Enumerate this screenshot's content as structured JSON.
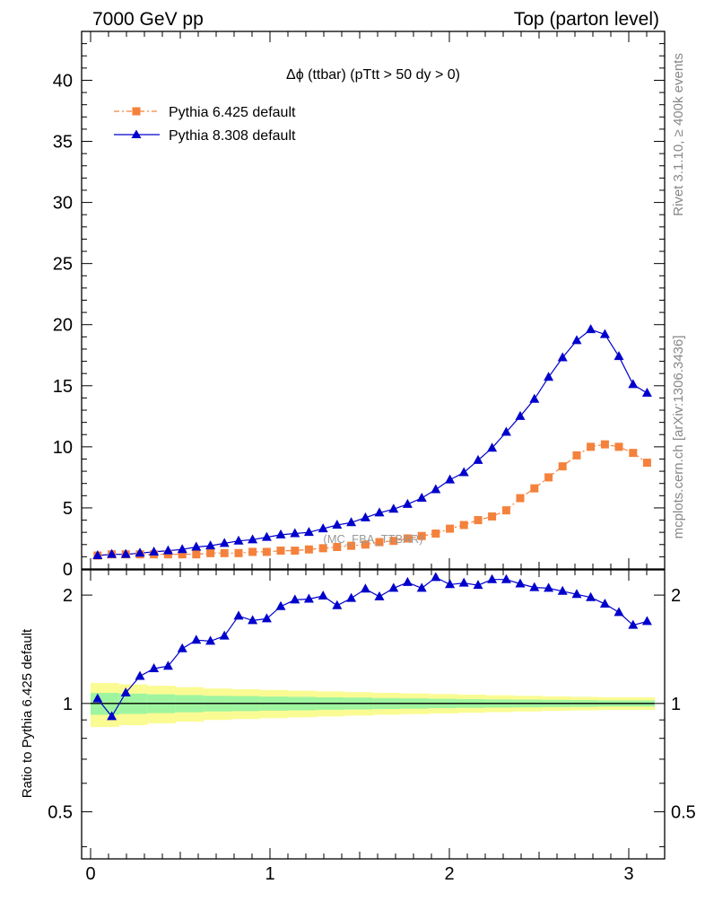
{
  "header": {
    "left": "7000 GeV pp",
    "right": "Top (parton level)"
  },
  "side_labels": {
    "rivet": "Rivet 3.1.10, ≥ 400k events",
    "mcplots": "mcplots.cern.ch [arXiv:1306.3436]"
  },
  "plot_title": "Δϕ (ttbar) (pTtt > 50 dy > 0)",
  "watermark": "(MC_FBA_TTBAR)",
  "colors": {
    "pythia6": "#f4823c",
    "pythia8": "#0000cc",
    "band_inner": "#9ff59f",
    "band_outer": "#fbfb94"
  },
  "chart_data": [
    {
      "type": "line",
      "panel": "main",
      "xlim": [
        -0.05,
        3.2
      ],
      "ylim": [
        0,
        44
      ],
      "yticks": [
        0,
        5,
        10,
        15,
        20,
        25,
        30,
        35,
        40
      ],
      "grid": false,
      "legend_position": "top-left",
      "x": [
        0.039,
        0.118,
        0.196,
        0.275,
        0.353,
        0.432,
        0.511,
        0.589,
        0.668,
        0.746,
        0.825,
        0.903,
        0.982,
        1.06,
        1.139,
        1.217,
        1.296,
        1.374,
        1.453,
        1.532,
        1.61,
        1.689,
        1.767,
        1.846,
        1.924,
        2.003,
        2.081,
        2.16,
        2.238,
        2.317,
        2.395,
        2.474,
        2.553,
        2.631,
        2.71,
        2.788,
        2.867,
        2.945,
        3.024,
        3.102
      ],
      "series": [
        {
          "name": "Pythia 6.425 default",
          "values": [
            1.1,
            1.2,
            1.2,
            1.2,
            1.2,
            1.2,
            1.2,
            1.2,
            1.3,
            1.3,
            1.3,
            1.4,
            1.4,
            1.5,
            1.5,
            1.6,
            1.7,
            1.8,
            1.9,
            2.0,
            2.2,
            2.3,
            2.5,
            2.7,
            2.9,
            3.3,
            3.6,
            4.0,
            4.3,
            4.8,
            5.8,
            6.6,
            7.5,
            8.4,
            9.3,
            10.0,
            10.2,
            10.0,
            9.5,
            8.7
          ]
        },
        {
          "name": "Pythia 8.308 default",
          "values": [
            1.1,
            1.2,
            1.2,
            1.3,
            1.4,
            1.5,
            1.6,
            1.8,
            1.9,
            2.1,
            2.3,
            2.4,
            2.6,
            2.8,
            2.9,
            3.0,
            3.3,
            3.6,
            3.8,
            4.2,
            4.6,
            4.9,
            5.3,
            5.8,
            6.5,
            7.3,
            7.9,
            8.9,
            9.9,
            11.2,
            12.5,
            13.9,
            15.7,
            17.3,
            18.7,
            19.6,
            19.2,
            17.4,
            15.1,
            14.4
          ]
        }
      ]
    },
    {
      "type": "line",
      "panel": "ratio",
      "ylabel": "Ratio to Pythia 6.425 default",
      "xlim": [
        -0.05,
        3.2
      ],
      "ylim": [
        0.37,
        2.35
      ],
      "yticks": [
        0.5,
        1,
        2
      ],
      "xticks": [
        0,
        1,
        2,
        3
      ],
      "grid": false,
      "reference_band": {
        "x_edges": [
          0.0,
          0.157,
          0.314,
          0.471,
          0.628,
          0.785,
          0.942,
          1.1,
          1.257,
          1.414,
          1.571,
          1.728,
          1.885,
          2.042,
          2.199,
          2.356,
          2.513,
          2.67,
          2.827,
          2.985,
          3.142
        ],
        "inner": [
          0.07,
          0.065,
          0.06,
          0.055,
          0.05,
          0.048,
          0.045,
          0.043,
          0.04,
          0.038,
          0.035,
          0.033,
          0.03,
          0.028,
          0.026,
          0.025,
          0.023,
          0.022,
          0.02,
          0.02
        ],
        "outer": [
          0.14,
          0.13,
          0.12,
          0.11,
          0.1,
          0.095,
          0.09,
          0.085,
          0.08,
          0.075,
          0.07,
          0.066,
          0.062,
          0.058,
          0.054,
          0.05,
          0.046,
          0.043,
          0.04,
          0.04
        ]
      },
      "x": [
        0.039,
        0.118,
        0.196,
        0.275,
        0.353,
        0.432,
        0.511,
        0.589,
        0.668,
        0.746,
        0.825,
        0.903,
        0.982,
        1.06,
        1.139,
        1.217,
        1.296,
        1.374,
        1.453,
        1.532,
        1.61,
        1.689,
        1.767,
        1.846,
        1.924,
        2.003,
        2.081,
        2.16,
        2.238,
        2.317,
        2.395,
        2.474,
        2.553,
        2.631,
        2.71,
        2.788,
        2.867,
        2.945,
        3.024,
        3.102
      ],
      "series": [
        {
          "name": "Pythia 8.308 default",
          "values": [
            1.03,
            0.92,
            1.07,
            1.19,
            1.25,
            1.27,
            1.42,
            1.5,
            1.49,
            1.54,
            1.75,
            1.7,
            1.72,
            1.86,
            1.94,
            1.95,
            1.99,
            1.87,
            1.96,
            2.08,
            1.98,
            2.09,
            2.17,
            2.09,
            2.24,
            2.14,
            2.16,
            2.13,
            2.21,
            2.21,
            2.15,
            2.1,
            2.09,
            2.05,
            2.01,
            1.97,
            1.89,
            1.79,
            1.65,
            1.69
          ]
        }
      ]
    }
  ]
}
